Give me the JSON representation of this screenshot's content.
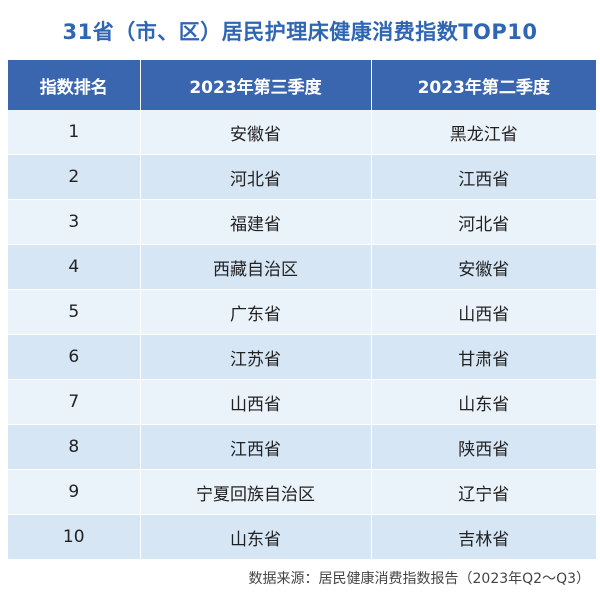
{
  "title": "31省（市、区）居民护理床健康消费指数TOP10",
  "colors": {
    "title": "#2f66b3",
    "header_bg": "#3a66b0",
    "row_odd_bg": "#eaf2fa",
    "row_even_bg": "#d6e6f5"
  },
  "table": {
    "headers": [
      "指数排名",
      "2023年第三季度",
      "2023年第二季度"
    ],
    "rows": [
      {
        "rank": "1",
        "q3": "安徽省",
        "q2": "黑龙江省"
      },
      {
        "rank": "2",
        "q3": "河北省",
        "q2": "江西省"
      },
      {
        "rank": "3",
        "q3": "福建省",
        "q2": "河北省"
      },
      {
        "rank": "4",
        "q3": "西藏自治区",
        "q2": "安徽省"
      },
      {
        "rank": "5",
        "q3": "广东省",
        "q2": "山西省"
      },
      {
        "rank": "6",
        "q3": "江苏省",
        "q2": "甘肃省"
      },
      {
        "rank": "7",
        "q3": "山西省",
        "q2": "山东省"
      },
      {
        "rank": "8",
        "q3": "江西省",
        "q2": "陕西省"
      },
      {
        "rank": "9",
        "q3": "宁夏回族自治区",
        "q2": "辽宁省"
      },
      {
        "rank": "10",
        "q3": "山东省",
        "q2": "吉林省"
      }
    ]
  },
  "source": "数据来源：居民健康消费指数报告（2023年Q2～Q3）"
}
